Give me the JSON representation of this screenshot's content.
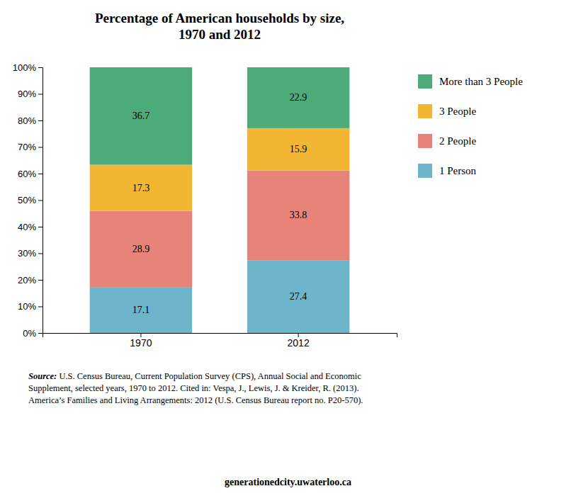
{
  "chart_data": {
    "type": "bar",
    "stacked": true,
    "title": "Percentage of American households by size,\n1970 and 2012",
    "categories": [
      "1970",
      "2012"
    ],
    "series": [
      {
        "name": "1 Person",
        "color": "#6db5cb",
        "values": [
          17.1,
          27.4
        ]
      },
      {
        "name": "2 People",
        "color": "#e8837a",
        "values": [
          28.9,
          33.8
        ]
      },
      {
        "name": "3 People",
        "color": "#f2b633",
        "values": [
          17.3,
          15.9
        ]
      },
      {
        "name": "More than 3 People",
        "color": "#4dab7a",
        "values": [
          36.7,
          22.9
        ]
      }
    ],
    "ylim": [
      0,
      100
    ],
    "yticks": [
      {
        "value": 0,
        "label": "0%"
      },
      {
        "value": 10,
        "label": "10%"
      },
      {
        "value": 20,
        "label": "20%"
      },
      {
        "value": 30,
        "label": "30%"
      },
      {
        "value": 40,
        "label": "40%"
      },
      {
        "value": 50,
        "label": "50%"
      },
      {
        "value": 60,
        "label": "60%"
      },
      {
        "value": 70,
        "label": "70%"
      },
      {
        "value": 80,
        "label": "80%"
      },
      {
        "value": 90,
        "label": "90%"
      },
      {
        "value": 100,
        "label": "100%"
      }
    ],
    "grid": false,
    "legend": "right",
    "data_labels": true,
    "annotations": [
      "Source:",
      " U.S. Census Bureau, Current Population Survey (CPS), Annual Social and Economic\nSupplement, selected years, 1970 to 2012. Cited in: Vespa, J., Lewis, J. & Kreider, R. (2013).\nAmerica’s Families and Living Arrangements: 2012 (U.S. Census Bureau report no. P20-570).",
      "generationedcity.uwaterloo.ca"
    ]
  }
}
